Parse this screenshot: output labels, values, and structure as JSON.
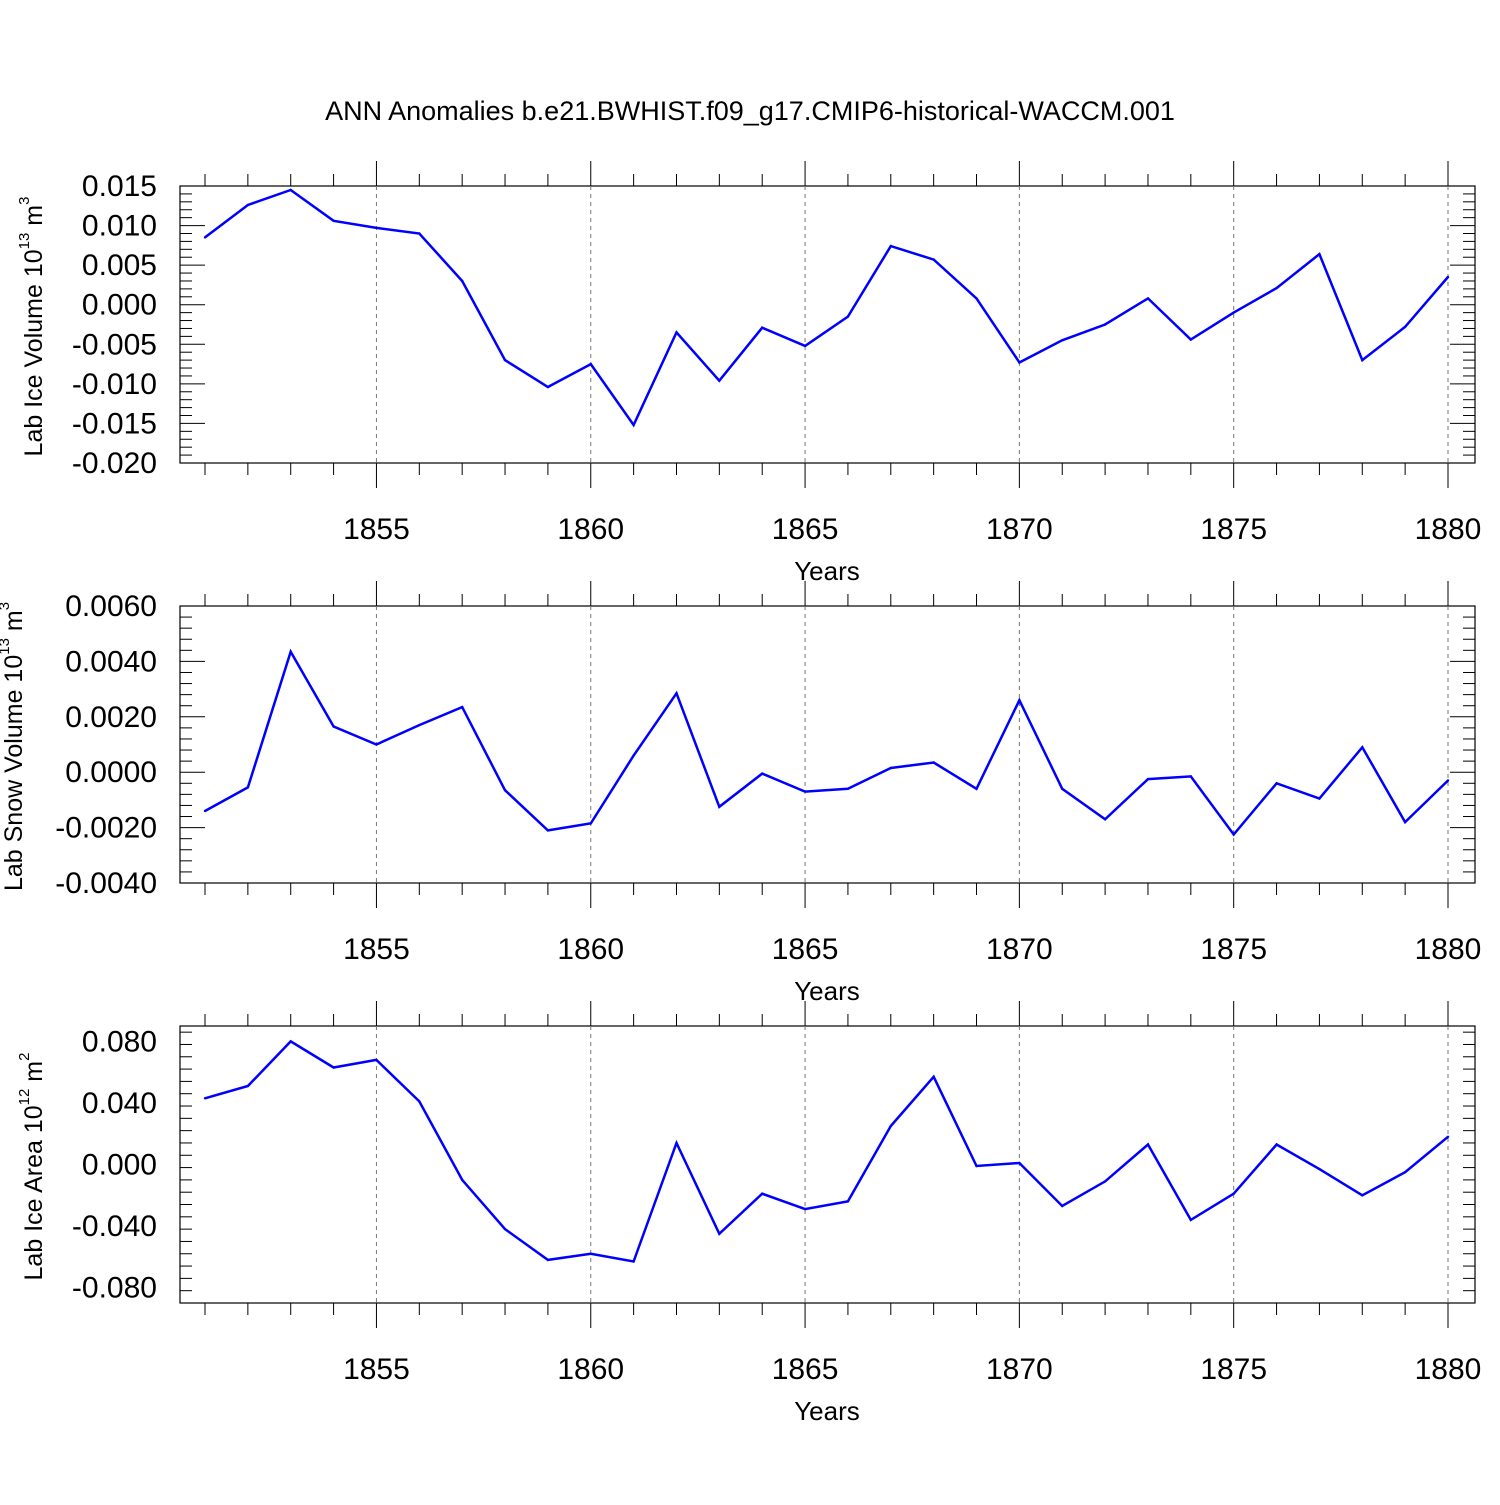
{
  "title": "ANN Anomalies b.e21.BWHIST.f09_g17.CMIP6-historical-WACCM.001",
  "line_color": "#0000ff",
  "chart_data": [
    {
      "type": "line",
      "ylabel_parts": [
        "Lab Ice Volume 10",
        "13",
        " m",
        "3"
      ],
      "xlabel": "Years",
      "xlim": [
        1851,
        1880
      ],
      "ylim": [
        -0.02,
        0.015
      ],
      "xticks": [
        "1855",
        "1860",
        "1865",
        "1870",
        "1875",
        "1880"
      ],
      "yticks": [
        "-0.020",
        "-0.015",
        "-0.010",
        "-0.005",
        "0.000",
        "0.005",
        "0.010",
        "0.015"
      ],
      "x": [
        1851,
        1852,
        1853,
        1854,
        1855,
        1856,
        1857,
        1858,
        1859,
        1860,
        1861,
        1862,
        1863,
        1864,
        1865,
        1866,
        1867,
        1868,
        1869,
        1870,
        1871,
        1872,
        1873,
        1874,
        1875,
        1876,
        1877,
        1878,
        1879,
        1880
      ],
      "series": [
        {
          "values": [
            0.0085,
            0.0126,
            0.0145,
            0.0106,
            0.0097,
            0.009,
            0.003,
            -0.007,
            -0.0104,
            -0.0075,
            -0.0152,
            -0.0035,
            -0.0096,
            -0.0029,
            -0.0052,
            -0.0015,
            0.0074,
            0.0057,
            0.0008,
            -0.0073,
            -0.0045,
            -0.0025,
            0.0008,
            -0.0044,
            -0.001,
            0.0021,
            0.0064,
            -0.007,
            -0.0028,
            0.0035
          ]
        }
      ]
    },
    {
      "type": "line",
      "ylabel_parts": [
        "Lab Snow Volume 10",
        "13",
        " m",
        "3"
      ],
      "xlabel": "Years",
      "xlim": [
        1851,
        1880
      ],
      "ylim": [
        -0.004,
        0.006
      ],
      "xticks": [
        "1855",
        "1860",
        "1865",
        "1870",
        "1875",
        "1880"
      ],
      "yticks": [
        "-0.0040",
        "-0.0020",
        "0.0000",
        "0.0020",
        "0.0040",
        "0.0060"
      ],
      "x": [
        1851,
        1852,
        1853,
        1854,
        1855,
        1856,
        1857,
        1858,
        1859,
        1860,
        1861,
        1862,
        1863,
        1864,
        1865,
        1866,
        1867,
        1868,
        1869,
        1870,
        1871,
        1872,
        1873,
        1874,
        1875,
        1876,
        1877,
        1878,
        1879,
        1880
      ],
      "series": [
        {
          "values": [
            -0.0014,
            -0.00055,
            0.00435,
            0.00165,
            0.001,
            0.0017,
            0.00235,
            -0.00065,
            -0.0021,
            -0.00185,
            0.0006,
            0.00285,
            -0.00125,
            -5e-05,
            -0.0007,
            -0.0006,
            0.00015,
            0.00035,
            -0.0006,
            0.0026,
            -0.0006,
            -0.0017,
            -0.00025,
            -0.00015,
            -0.00225,
            -0.0004,
            -0.00095,
            0.0009,
            -0.0018,
            -0.0003
          ]
        }
      ]
    },
    {
      "type": "line",
      "ylabel_parts": [
        "Lab Ice Area 10",
        "12",
        " m",
        "2"
      ],
      "xlabel": "Years",
      "xlim": [
        1851,
        1880
      ],
      "ylim": [
        -0.09,
        0.09
      ],
      "xticks": [
        "1855",
        "1860",
        "1865",
        "1870",
        "1875",
        "1880"
      ],
      "yticks": [
        "-0.080",
        "-0.040",
        "0.000",
        "0.040",
        "0.080"
      ],
      "x": [
        1851,
        1852,
        1853,
        1854,
        1855,
        1856,
        1857,
        1858,
        1859,
        1860,
        1861,
        1862,
        1863,
        1864,
        1865,
        1866,
        1867,
        1868,
        1869,
        1870,
        1871,
        1872,
        1873,
        1874,
        1875,
        1876,
        1877,
        1878,
        1879,
        1880
      ],
      "series": [
        {
          "values": [
            0.043,
            0.051,
            0.08,
            0.063,
            0.068,
            0.041,
            -0.01,
            -0.042,
            -0.062,
            -0.058,
            -0.063,
            0.014,
            -0.045,
            -0.019,
            -0.029,
            -0.024,
            0.025,
            0.057,
            -0.001,
            0.001,
            -0.027,
            -0.011,
            0.013,
            -0.036,
            -0.019,
            0.013,
            -0.003,
            -0.02,
            -0.005,
            0.018
          ]
        }
      ]
    }
  ]
}
